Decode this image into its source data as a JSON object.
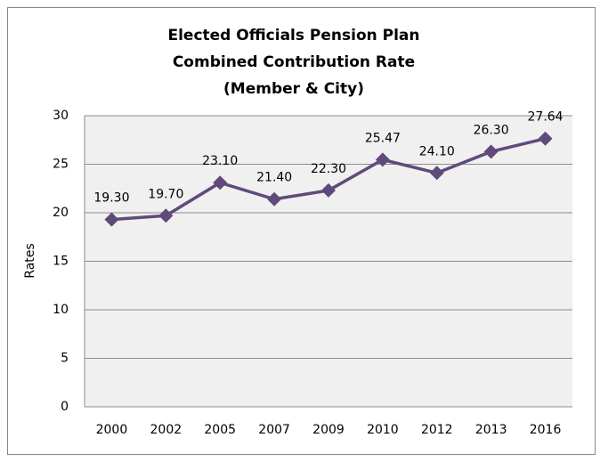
{
  "chart_data": {
    "type": "line",
    "title": [
      "Elected Officials Pension Plan",
      "Combined Contribution Rate",
      "(Member & City)"
    ],
    "y_label": "Rates",
    "categories": [
      "2000",
      "2002",
      "2005",
      "2007",
      "2009",
      "2010",
      "2012",
      "2013",
      "2016"
    ],
    "values": [
      19.3,
      19.7,
      23.1,
      21.4,
      22.3,
      25.47,
      24.1,
      26.3,
      27.64
    ],
    "value_labels": [
      "19.30",
      "19.70",
      "23.10",
      "21.40",
      "22.30",
      "25.47",
      "24.10",
      "26.30",
      "27.64"
    ],
    "color": "#604a7b",
    "ylim": [
      0,
      30
    ],
    "yticks": [
      0,
      5,
      10,
      15,
      20,
      25,
      30
    ],
    "grid": true
  }
}
